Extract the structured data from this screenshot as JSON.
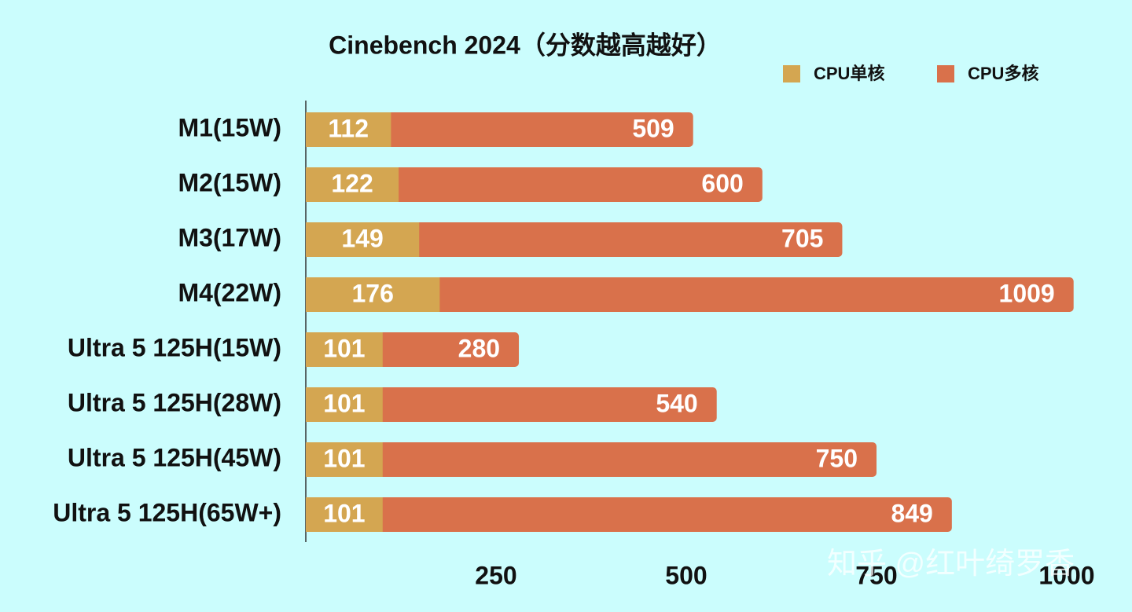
{
  "chart_data": {
    "type": "bar",
    "orientation": "horizontal",
    "overlap": true,
    "title": "Cinebench 2024（分数越高越好）",
    "categories": [
      "M1(15W)",
      "M2(15W)",
      "M3(17W)",
      "M4(22W)",
      "Ultra 5 125H(15W)",
      "Ultra 5 125H(28W)",
      "Ultra 5 125H(45W)",
      "Ultra 5 125H(65W+)"
    ],
    "series": [
      {
        "name": "CPU单核",
        "color": "#d4a651",
        "values": [
          112,
          122,
          149,
          176,
          101,
          101,
          101,
          101
        ]
      },
      {
        "name": "CPU多核",
        "color": "#d9714b",
        "values": [
          509,
          600,
          705,
          1009,
          280,
          540,
          750,
          849
        ]
      }
    ],
    "xlim": [
      0,
      1000
    ],
    "xticks": [
      250,
      500,
      750,
      1000
    ],
    "watermark": "知乎 @红叶绮罗香"
  }
}
